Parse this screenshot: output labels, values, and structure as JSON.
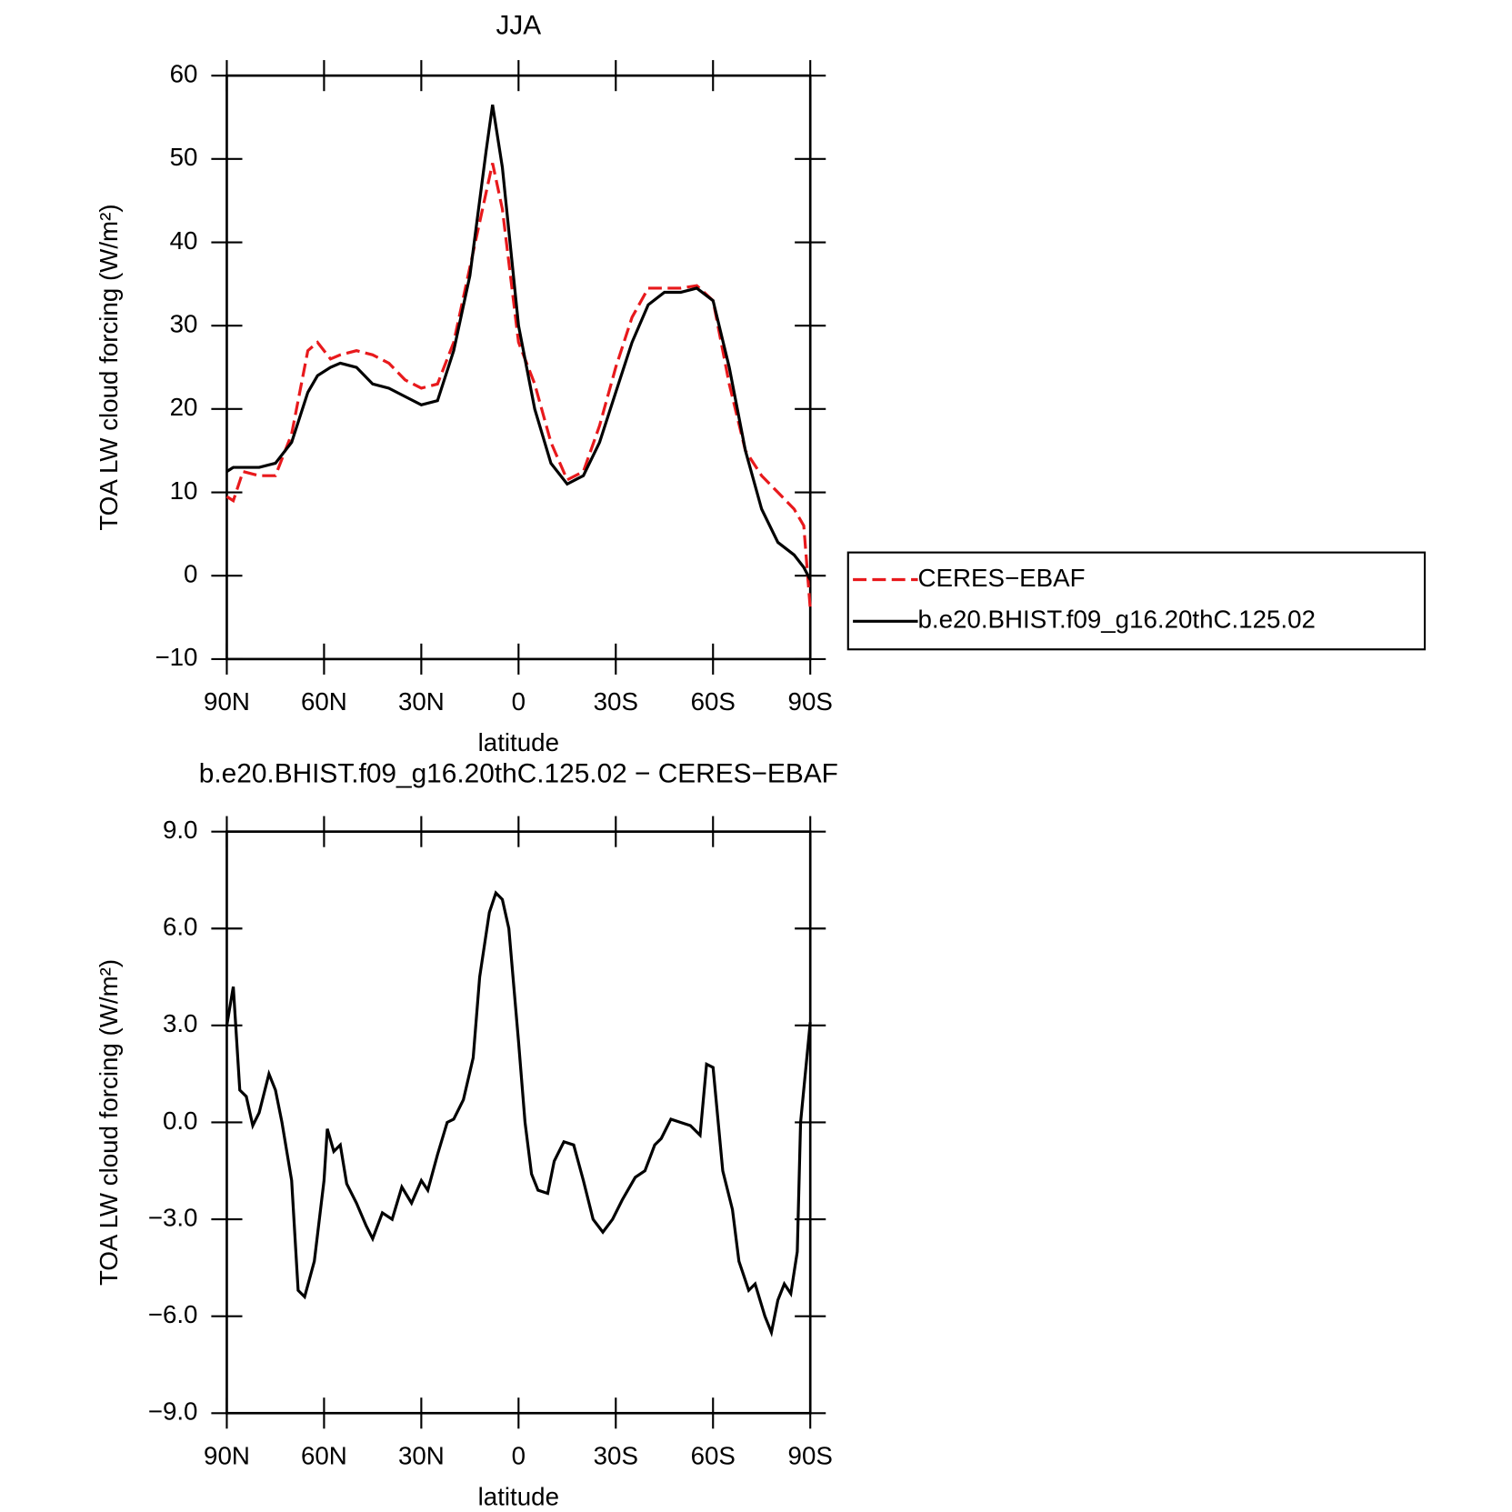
{
  "chart_data": [
    {
      "type": "line",
      "title": "JJA",
      "xlabel": "latitude",
      "ylabel": "TOA LW cloud forcing (W/m²)",
      "x": [
        90,
        88,
        85,
        80,
        75,
        70,
        65,
        62,
        58,
        55,
        50,
        45,
        40,
        35,
        30,
        25,
        20,
        15,
        10,
        8,
        5,
        0,
        -5,
        -10,
        -15,
        -20,
        -25,
        -30,
        -35,
        -40,
        -45,
        -50,
        -55,
        -60,
        -65,
        -70,
        -75,
        -80,
        -85,
        -88,
        -90
      ],
      "series": [
        {
          "name": "CERES−EBAF",
          "color": "#e8191c",
          "dash": true,
          "values": [
            9.5,
            9,
            12.5,
            12,
            12,
            17,
            27,
            28,
            26,
            26.5,
            27,
            26.5,
            25.5,
            23.5,
            22.5,
            23,
            28,
            37,
            46,
            49.5,
            44,
            28,
            23,
            16,
            11.5,
            12.5,
            18,
            25,
            31,
            34.5,
            34.5,
            34.5,
            34.8,
            33,
            23,
            15,
            12,
            10,
            8,
            6,
            -4
          ]
        },
        {
          "name": "b.e20.BHIST.f09_g16.20thC.125.02",
          "color": "#000000",
          "dash": false,
          "values": [
            12.5,
            13,
            13,
            13,
            13.5,
            16,
            22,
            24,
            25,
            25.5,
            25,
            23,
            22.5,
            21.5,
            20.5,
            21,
            27,
            36,
            51,
            56.5,
            49,
            30,
            20,
            13.5,
            11,
            12,
            16,
            22,
            28,
            32.5,
            34,
            34,
            34.5,
            33,
            25,
            15,
            8,
            4,
            2.5,
            1,
            -0.5
          ]
        }
      ],
      "xlim": [
        90,
        -90
      ],
      "xticks": [
        {
          "value": 90,
          "label": "90N"
        },
        {
          "value": 60,
          "label": "60N"
        },
        {
          "value": 30,
          "label": "30N"
        },
        0,
        {
          "value": -30,
          "label": "30S"
        },
        {
          "value": -60,
          "label": "60S"
        },
        {
          "value": -90,
          "label": "90S"
        }
      ],
      "ylim": [
        -10,
        60
      ],
      "yticks": [
        {
          "value": -10,
          "label": "−10"
        },
        0,
        10,
        20,
        30,
        40,
        50,
        60
      ],
      "legend": "outside-right"
    },
    {
      "type": "line",
      "title": "b.e20.BHIST.f09_g16.20thC.125.02 − CERES−EBAF",
      "xlabel": "latitude",
      "ylabel": "TOA LW cloud forcing (W/m²)",
      "x": [
        90,
        88,
        86,
        84,
        82,
        80,
        77,
        75,
        73,
        70,
        68,
        66,
        63,
        60,
        59,
        57,
        55,
        53,
        50,
        47,
        45,
        42,
        39,
        36,
        33,
        30,
        28,
        25,
        22,
        20,
        17,
        14,
        12,
        9,
        7,
        5,
        3,
        0,
        -2,
        -4,
        -6,
        -9,
        -11,
        -14,
        -17,
        -20,
        -23,
        -26,
        -29,
        -32,
        -36,
        -39,
        -42,
        -44,
        -47,
        -50,
        -53,
        -56,
        -58,
        -60,
        -63,
        -66,
        -68,
        -71,
        -73,
        -76,
        -78,
        -80,
        -82,
        -84,
        -86,
        -87,
        -90
      ],
      "color": "#000000",
      "values": [
        3,
        4.2,
        1,
        0.8,
        -0.1,
        0.3,
        1.5,
        1,
        0,
        -1.8,
        -5.2,
        -5.4,
        -4.3,
        -1.8,
        -0.2,
        -0.9,
        -0.7,
        -1.9,
        -2.5,
        -3.2,
        -3.6,
        -2.8,
        -3,
        -2,
        -2.5,
        -1.8,
        -2.1,
        -1,
        0,
        0.1,
        0.7,
        2,
        4.5,
        6.5,
        7.1,
        6.9,
        6,
        2.5,
        0,
        -1.6,
        -2.1,
        -2.2,
        -1.2,
        -0.6,
        -0.7,
        -1.8,
        -3,
        -3.4,
        -3,
        -2.4,
        -1.7,
        -1.5,
        -0.7,
        -0.5,
        0.1,
        0,
        -0.1,
        -0.4,
        1.8,
        1.7,
        -1.5,
        -2.7,
        -4.3,
        -5.2,
        -5,
        -6,
        -6.5,
        -5.5,
        -5,
        -5.3,
        -4,
        0,
        3.1
      ],
      "xlim": [
        90,
        -90
      ],
      "xticks": [
        {
          "value": 90,
          "label": "90N"
        },
        {
          "value": 60,
          "label": "60N"
        },
        {
          "value": 30,
          "label": "30N"
        },
        0,
        {
          "value": -30,
          "label": "30S"
        },
        {
          "value": -60,
          "label": "60S"
        },
        {
          "value": -90,
          "label": "90S"
        }
      ],
      "ylim": [
        -9,
        9
      ],
      "yticks": [
        {
          "value": -9,
          "label": "−9.0"
        },
        {
          "value": -6,
          "label": "−6.0"
        },
        {
          "value": -3,
          "label": "−3.0"
        },
        {
          "value": 0,
          "label": "0.0"
        },
        {
          "value": 3,
          "label": "3.0"
        },
        {
          "value": 6,
          "label": "6.0"
        },
        {
          "value": 9,
          "label": "9.0"
        }
      ]
    }
  ]
}
